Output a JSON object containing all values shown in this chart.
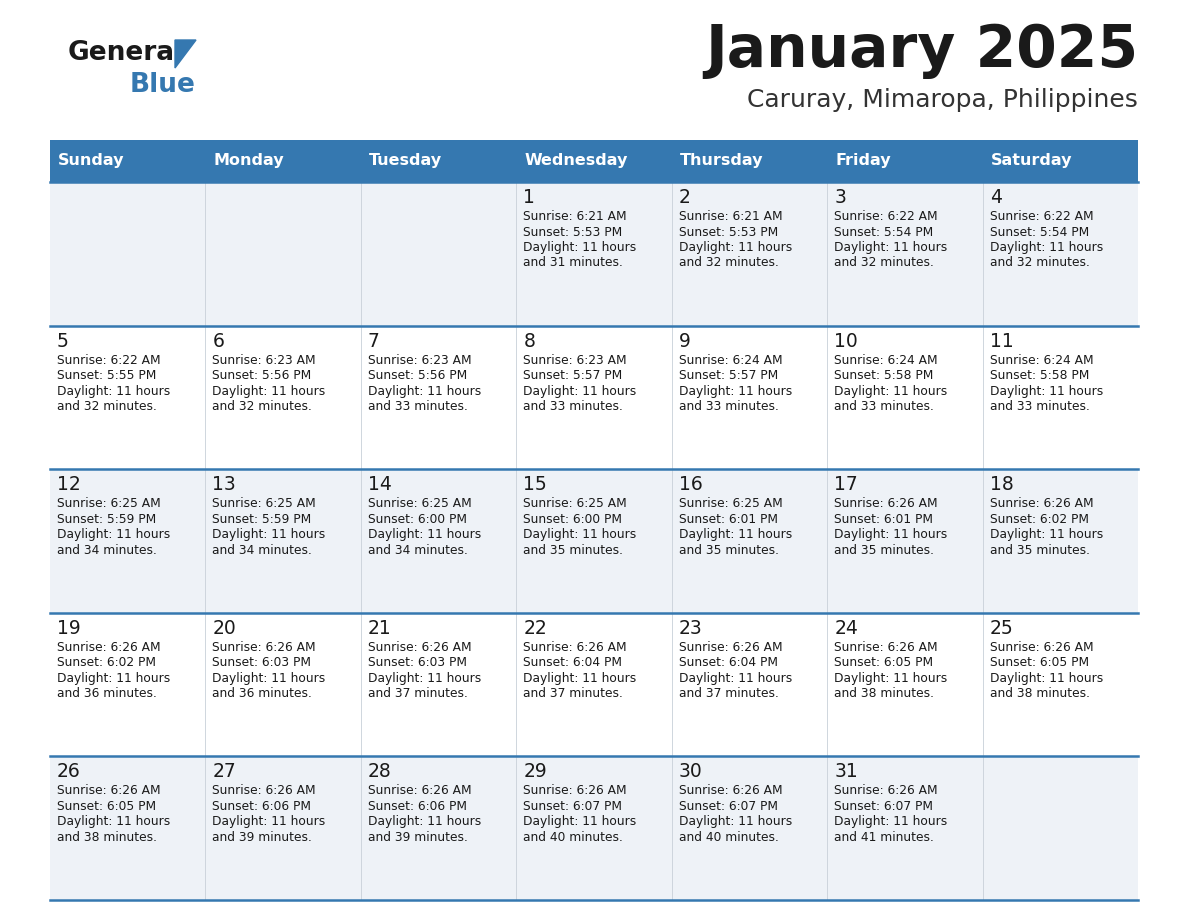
{
  "title": "January 2025",
  "subtitle": "Caruray, Mimaropa, Philippines",
  "header_bg": "#3578b0",
  "header_text": "#ffffff",
  "row_bg_light": "#eef2f7",
  "row_bg_white": "#ffffff",
  "cell_border_color": "#3578b0",
  "day_names": [
    "Sunday",
    "Monday",
    "Tuesday",
    "Wednesday",
    "Thursday",
    "Friday",
    "Saturday"
  ],
  "days": [
    {
      "day": 1,
      "col": 3,
      "row": 0,
      "sunrise": "6:21 AM",
      "sunset": "5:53 PM",
      "dl_min": 31
    },
    {
      "day": 2,
      "col": 4,
      "row": 0,
      "sunrise": "6:21 AM",
      "sunset": "5:53 PM",
      "dl_min": 32
    },
    {
      "day": 3,
      "col": 5,
      "row": 0,
      "sunrise": "6:22 AM",
      "sunset": "5:54 PM",
      "dl_min": 32
    },
    {
      "day": 4,
      "col": 6,
      "row": 0,
      "sunrise": "6:22 AM",
      "sunset": "5:54 PM",
      "dl_min": 32
    },
    {
      "day": 5,
      "col": 0,
      "row": 1,
      "sunrise": "6:22 AM",
      "sunset": "5:55 PM",
      "dl_min": 32
    },
    {
      "day": 6,
      "col": 1,
      "row": 1,
      "sunrise": "6:23 AM",
      "sunset": "5:56 PM",
      "dl_min": 32
    },
    {
      "day": 7,
      "col": 2,
      "row": 1,
      "sunrise": "6:23 AM",
      "sunset": "5:56 PM",
      "dl_min": 33
    },
    {
      "day": 8,
      "col": 3,
      "row": 1,
      "sunrise": "6:23 AM",
      "sunset": "5:57 PM",
      "dl_min": 33
    },
    {
      "day": 9,
      "col": 4,
      "row": 1,
      "sunrise": "6:24 AM",
      "sunset": "5:57 PM",
      "dl_min": 33
    },
    {
      "day": 10,
      "col": 5,
      "row": 1,
      "sunrise": "6:24 AM",
      "sunset": "5:58 PM",
      "dl_min": 33
    },
    {
      "day": 11,
      "col": 6,
      "row": 1,
      "sunrise": "6:24 AM",
      "sunset": "5:58 PM",
      "dl_min": 33
    },
    {
      "day": 12,
      "col": 0,
      "row": 2,
      "sunrise": "6:25 AM",
      "sunset": "5:59 PM",
      "dl_min": 34
    },
    {
      "day": 13,
      "col": 1,
      "row": 2,
      "sunrise": "6:25 AM",
      "sunset": "5:59 PM",
      "dl_min": 34
    },
    {
      "day": 14,
      "col": 2,
      "row": 2,
      "sunrise": "6:25 AM",
      "sunset": "6:00 PM",
      "dl_min": 34
    },
    {
      "day": 15,
      "col": 3,
      "row": 2,
      "sunrise": "6:25 AM",
      "sunset": "6:00 PM",
      "dl_min": 35
    },
    {
      "day": 16,
      "col": 4,
      "row": 2,
      "sunrise": "6:25 AM",
      "sunset": "6:01 PM",
      "dl_min": 35
    },
    {
      "day": 17,
      "col": 5,
      "row": 2,
      "sunrise": "6:26 AM",
      "sunset": "6:01 PM",
      "dl_min": 35
    },
    {
      "day": 18,
      "col": 6,
      "row": 2,
      "sunrise": "6:26 AM",
      "sunset": "6:02 PM",
      "dl_min": 35
    },
    {
      "day": 19,
      "col": 0,
      "row": 3,
      "sunrise": "6:26 AM",
      "sunset": "6:02 PM",
      "dl_min": 36
    },
    {
      "day": 20,
      "col": 1,
      "row": 3,
      "sunrise": "6:26 AM",
      "sunset": "6:03 PM",
      "dl_min": 36
    },
    {
      "day": 21,
      "col": 2,
      "row": 3,
      "sunrise": "6:26 AM",
      "sunset": "6:03 PM",
      "dl_min": 37
    },
    {
      "day": 22,
      "col": 3,
      "row": 3,
      "sunrise": "6:26 AM",
      "sunset": "6:04 PM",
      "dl_min": 37
    },
    {
      "day": 23,
      "col": 4,
      "row": 3,
      "sunrise": "6:26 AM",
      "sunset": "6:04 PM",
      "dl_min": 37
    },
    {
      "day": 24,
      "col": 5,
      "row": 3,
      "sunrise": "6:26 AM",
      "sunset": "6:05 PM",
      "dl_min": 38
    },
    {
      "day": 25,
      "col": 6,
      "row": 3,
      "sunrise": "6:26 AM",
      "sunset": "6:05 PM",
      "dl_min": 38
    },
    {
      "day": 26,
      "col": 0,
      "row": 4,
      "sunrise": "6:26 AM",
      "sunset": "6:05 PM",
      "dl_min": 38
    },
    {
      "day": 27,
      "col": 1,
      "row": 4,
      "sunrise": "6:26 AM",
      "sunset": "6:06 PM",
      "dl_min": 39
    },
    {
      "day": 28,
      "col": 2,
      "row": 4,
      "sunrise": "6:26 AM",
      "sunset": "6:06 PM",
      "dl_min": 39
    },
    {
      "day": 29,
      "col": 3,
      "row": 4,
      "sunrise": "6:26 AM",
      "sunset": "6:07 PM",
      "dl_min": 40
    },
    {
      "day": 30,
      "col": 4,
      "row": 4,
      "sunrise": "6:26 AM",
      "sunset": "6:07 PM",
      "dl_min": 40
    },
    {
      "day": 31,
      "col": 5,
      "row": 4,
      "sunrise": "6:26 AM",
      "sunset": "6:07 PM",
      "dl_min": 41
    }
  ],
  "num_rows": 5,
  "num_cols": 7
}
